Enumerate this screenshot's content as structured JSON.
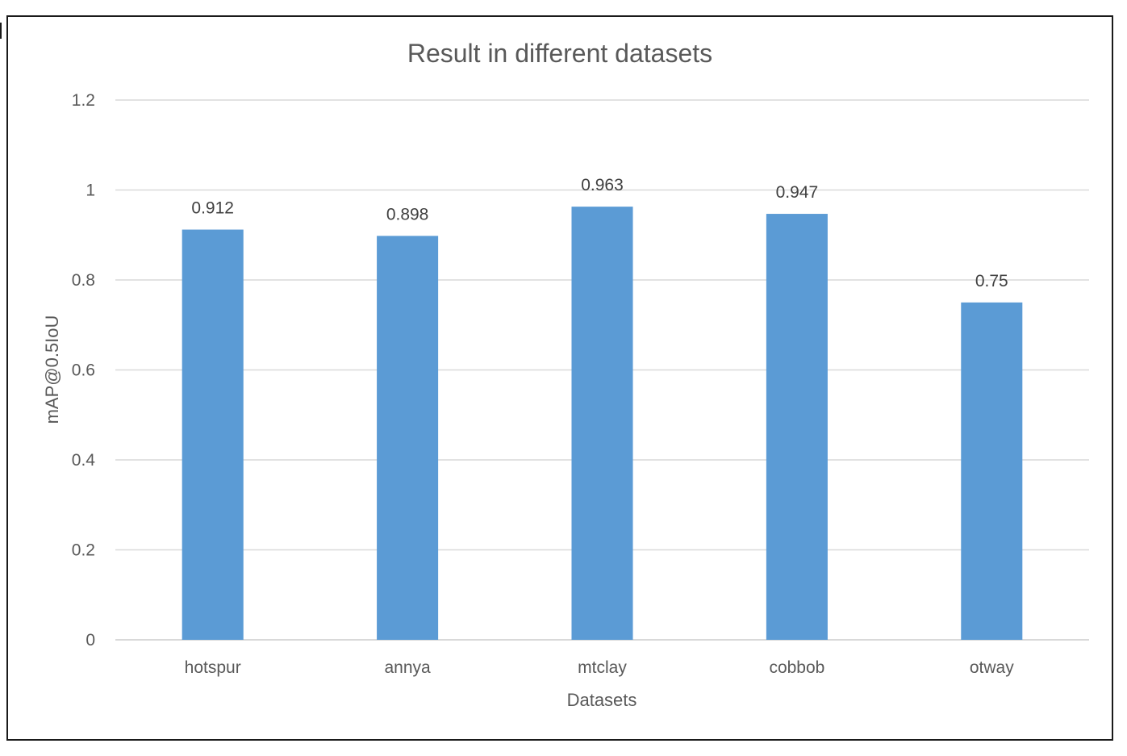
{
  "chart_data": {
    "type": "bar",
    "title": "Result in different datasets",
    "xlabel": "Datasets",
    "ylabel": "mAP@0.5IoU",
    "categories": [
      "hotspur",
      "annya",
      "mtclay",
      "cobbob",
      "otway"
    ],
    "values": [
      0.912,
      0.898,
      0.963,
      0.947,
      0.75
    ],
    "value_labels": [
      "0.912",
      "0.898",
      "0.963",
      "0.947",
      "0.75"
    ],
    "ylim": [
      0,
      1.2
    ],
    "yticks": [
      0,
      0.2,
      0.4,
      0.6,
      0.8,
      1,
      1.2
    ],
    "ytick_labels": [
      "0",
      "0.2",
      "0.4",
      "0.6",
      "0.8",
      "1",
      "1.2"
    ],
    "grid": true,
    "legend": "none",
    "bar_color": "#5B9BD5",
    "gridline_color": "#d9d9d9"
  }
}
